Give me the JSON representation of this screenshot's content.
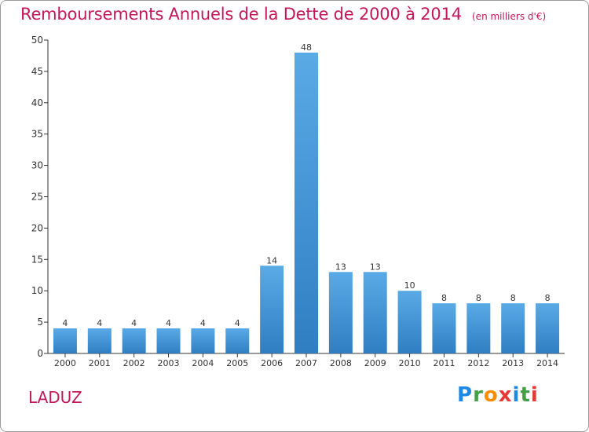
{
  "header": {
    "title": "Remboursements Annuels de la Dette de 2000 à 2014",
    "subtitle": "(en milliers d'€)"
  },
  "footer": {
    "commune": "LADUZ",
    "brand": {
      "text": "Proxiti",
      "letters": [
        {
          "ch": "P",
          "color": "#1e88e5"
        },
        {
          "ch": "r",
          "color": "#43a047"
        },
        {
          "ch": "o",
          "color": "#fb8c00"
        },
        {
          "ch": "x",
          "color": "#e53935"
        },
        {
          "ch": "i",
          "color": "#1e88e5"
        },
        {
          "ch": "t",
          "color": "#43a047"
        },
        {
          "ch": "i",
          "color": "#e53935"
        }
      ]
    }
  },
  "chart_data": {
    "type": "bar",
    "title": "Remboursements Annuels de la Dette de 2000 à 2014",
    "subtitle": "(en milliers d'€)",
    "xlabel": "",
    "ylabel": "",
    "categories": [
      "2000",
      "2001",
      "2002",
      "2003",
      "2004",
      "2005",
      "2006",
      "2007",
      "2008",
      "2009",
      "2010",
      "2011",
      "2012",
      "2013",
      "2014"
    ],
    "values": [
      4,
      4,
      4,
      4,
      4,
      4,
      14,
      48,
      13,
      13,
      10,
      8,
      8,
      8,
      8
    ],
    "data_labels": [
      "4",
      "4",
      "4",
      "4",
      "4",
      "4",
      "14",
      "48",
      "13",
      "13",
      "10",
      "8",
      "8",
      "8",
      "8"
    ],
    "ylim": [
      0,
      50
    ],
    "yticks": [
      0,
      5,
      10,
      15,
      20,
      25,
      30,
      35,
      40,
      45,
      50
    ],
    "grid": false,
    "legend": "none",
    "colors": {
      "bar_light": "#5aaae6",
      "bar_dark": "#2f7ec2",
      "axis": "#333333",
      "text": "#333333"
    }
  }
}
